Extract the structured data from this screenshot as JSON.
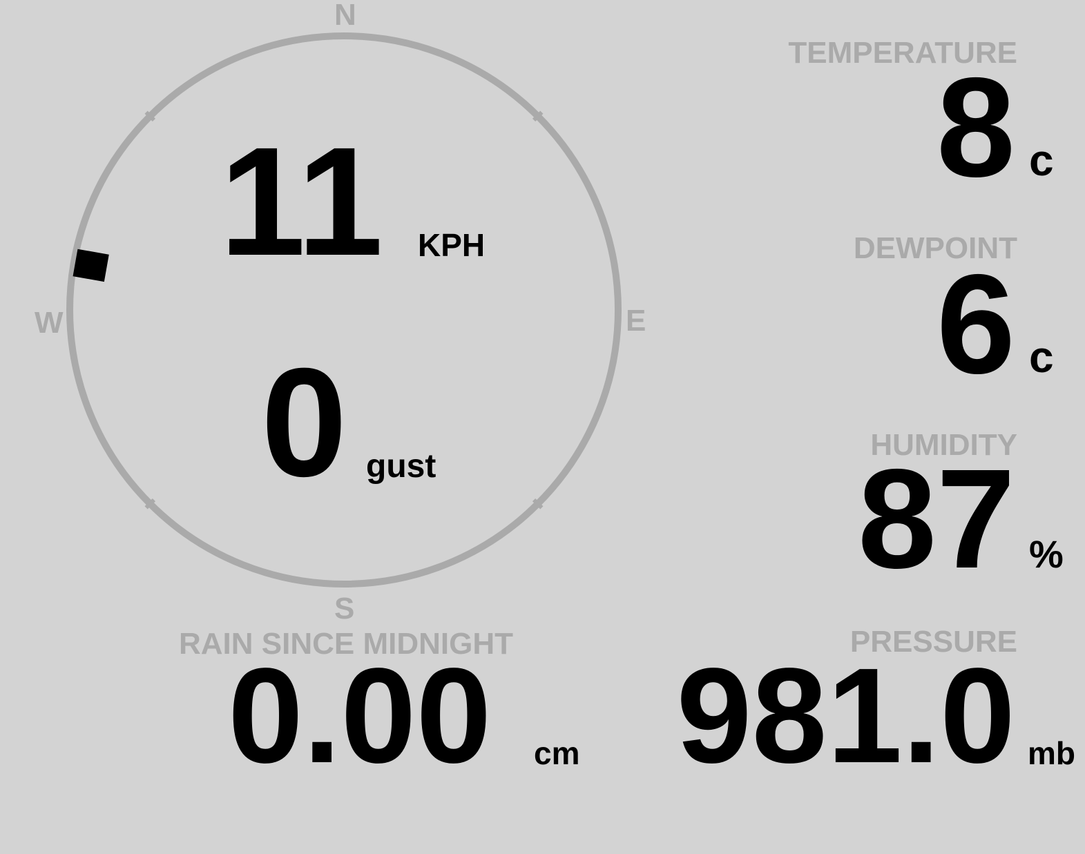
{
  "compass": {
    "north": "N",
    "east": "E",
    "south": "S",
    "west": "W",
    "wind_direction_deg": 280,
    "ring_color": "#aaaaaa"
  },
  "wind": {
    "speed": "11",
    "speed_unit": "KPH",
    "gust": "0",
    "gust_label": "gust"
  },
  "temperature": {
    "label": "TEMPERATURE",
    "value": "8",
    "unit": "c"
  },
  "dewpoint": {
    "label": "DEWPOINT",
    "value": "6",
    "unit": "c"
  },
  "humidity": {
    "label": "HUMIDITY",
    "value": "87",
    "unit": "%"
  },
  "rain": {
    "label": "RAIN SINCE MIDNIGHT",
    "value": "0.00",
    "unit": "cm"
  },
  "pressure": {
    "label": "PRESSURE",
    "value": "981.0",
    "unit": "mb"
  }
}
